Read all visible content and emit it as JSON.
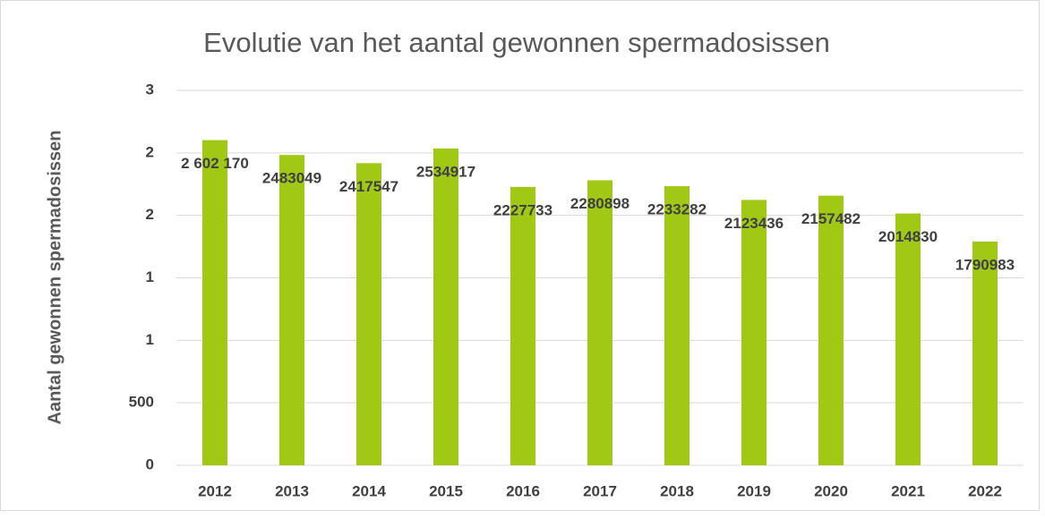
{
  "chart_data": {
    "type": "bar",
    "title": "Evolutie van het aantal gewonnen spermadosissen",
    "y_label": "Aantal gewonnen spermadosissen",
    "categories": [
      "2012",
      "2013",
      "2014",
      "2015",
      "2016",
      "2017",
      "2018",
      "2019",
      "2020",
      "2021",
      "2022"
    ],
    "values": [
      2602170,
      2483049,
      2417547,
      2534917,
      2227733,
      2280898,
      2233282,
      2123436,
      2157482,
      2014830,
      1790983
    ],
    "value_labels": [
      "2 602 170",
      "2483049",
      "2417547",
      "2534917",
      "2227733",
      "2280898",
      "2233282",
      "2123436",
      "2157482",
      "2014830",
      "1790983"
    ],
    "color": "#a0c814",
    "ylim": [
      0,
      3000000
    ],
    "yticks": [
      0,
      {
        "value": 500000,
        "label": "500"
      },
      {
        "value": 1000000,
        "label": "1"
      },
      {
        "value": 1500000,
        "label": "1"
      },
      {
        "value": 2000000,
        "label": "2"
      },
      {
        "value": 2500000,
        "label": "2"
      },
      {
        "value": 3000000,
        "label": "3"
      }
    ],
    "grid": true
  }
}
